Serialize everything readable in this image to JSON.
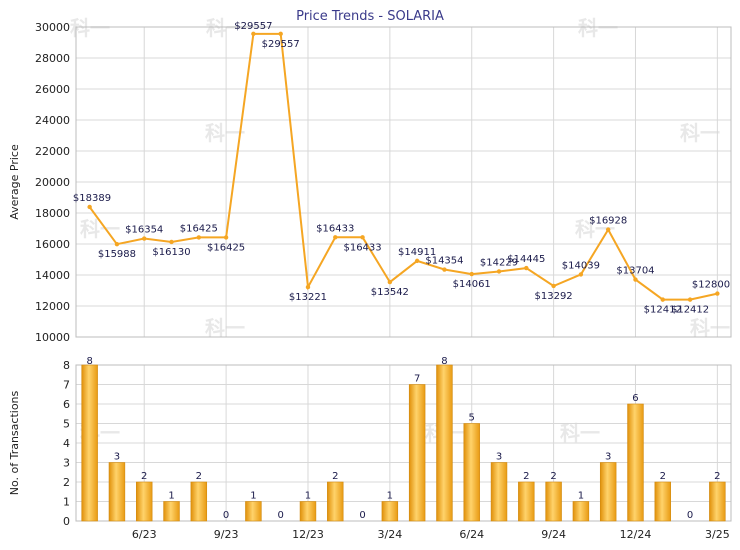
{
  "chart_data": [
    {
      "type": "line",
      "title": "Price Trends - SOLARIA",
      "ylabel": "Average Price",
      "ylim": [
        10000,
        30000
      ],
      "yticks": [
        10000,
        12000,
        14000,
        16000,
        18000,
        20000,
        22000,
        24000,
        26000,
        28000,
        30000
      ],
      "grid": true,
      "line_color": "#f5a623",
      "points": [
        {
          "x": 0,
          "y": 18389,
          "label": "$18389"
        },
        {
          "x": 1,
          "y": 15988,
          "label": "$15988"
        },
        {
          "x": 2,
          "y": 16354,
          "label": "$16354"
        },
        {
          "x": 3,
          "y": 16130,
          "label": "$16130"
        },
        {
          "x": 4,
          "y": 16425,
          "label": "$16425"
        },
        {
          "x": 5,
          "y": 16425,
          "label": "$16425"
        },
        {
          "x": 6,
          "y": 29557,
          "label": "$29557"
        },
        {
          "x": 7,
          "y": 29557,
          "label": "$29557"
        },
        {
          "x": 8,
          "y": 13221,
          "label": "$13221"
        },
        {
          "x": 9,
          "y": 16433,
          "label": "$16433"
        },
        {
          "x": 10,
          "y": 16433,
          "label": "$16433"
        },
        {
          "x": 11,
          "y": 13542,
          "label": "$13542"
        },
        {
          "x": 12,
          "y": 14911,
          "label": "$14911"
        },
        {
          "x": 13,
          "y": 14354,
          "label": "$14354"
        },
        {
          "x": 14,
          "y": 14061,
          "label": "$14061"
        },
        {
          "x": 15,
          "y": 14229,
          "label": "$14229"
        },
        {
          "x": 16,
          "y": 14445,
          "label": "$14445"
        },
        {
          "x": 17,
          "y": 13292,
          "label": "$13292"
        },
        {
          "x": 18,
          "y": 14039,
          "label": "$14039"
        },
        {
          "x": 19,
          "y": 16928,
          "label": "$16928"
        },
        {
          "x": 20,
          "y": 13704,
          "label": "$13704"
        },
        {
          "x": 21,
          "y": 12412,
          "label": "$12412"
        },
        {
          "x": 22,
          "y": 12412,
          "label": "$12412"
        },
        {
          "x": 23,
          "y": 12800,
          "label": "$12800"
        }
      ]
    },
    {
      "type": "bar",
      "ylabel": "No. of Transactions",
      "ylim": [
        0,
        8
      ],
      "yticks": [
        0,
        1,
        2,
        3,
        4,
        5,
        6,
        7,
        8
      ],
      "grid": true,
      "bar_color": "#f5a623",
      "xticks": [
        "6/23",
        "9/23",
        "12/23",
        "3/24",
        "6/24",
        "9/24",
        "12/24",
        "3/25"
      ],
      "values": [
        8,
        3,
        2,
        1,
        2,
        0,
        1,
        0,
        1,
        2,
        0,
        1,
        7,
        8,
        5,
        3,
        2,
        2,
        1,
        3,
        6,
        2,
        0,
        2
      ]
    }
  ]
}
